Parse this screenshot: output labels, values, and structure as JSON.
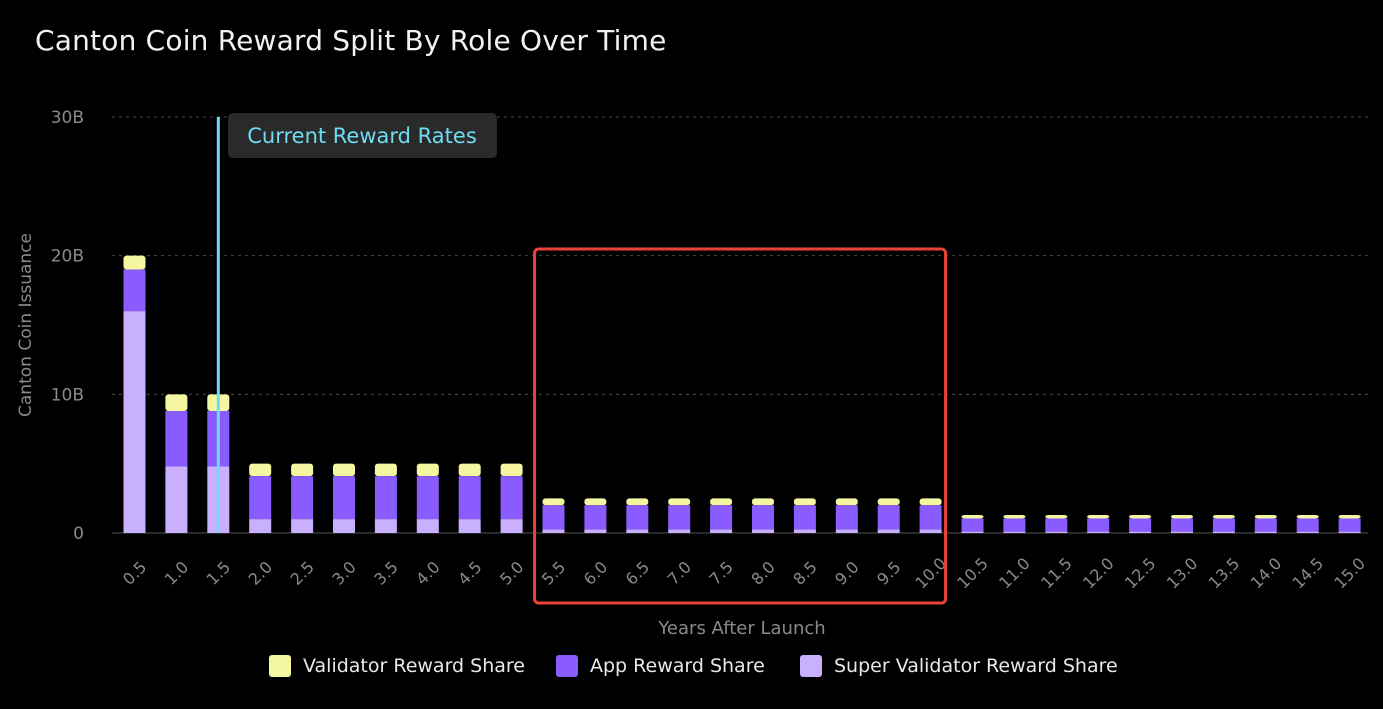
{
  "chart_data": {
    "type": "bar",
    "stacked": true,
    "title": "Canton Coin Reward Split By Role Over Time",
    "xlabel": "Years After Launch",
    "ylabel": "Canton Coin Issuance",
    "ylim": [
      0,
      30
    ],
    "yticks": [
      {
        "value": 0,
        "label": "0"
      },
      {
        "value": 10,
        "label": "10B"
      },
      {
        "value": 20,
        "label": "20B"
      },
      {
        "value": 30,
        "label": "30B"
      }
    ],
    "grid": "horizontal dashed",
    "legend_position": "bottom",
    "categories": [
      "0.5",
      "1.0",
      "1.5",
      "2.0",
      "2.5",
      "3.0",
      "3.5",
      "4.0",
      "4.5",
      "5.0",
      "5.5",
      "6.0",
      "6.5",
      "7.0",
      "7.5",
      "8.0",
      "8.5",
      "9.0",
      "9.5",
      "10.0",
      "10.5",
      "11.0",
      "11.5",
      "12.0",
      "12.5",
      "13.0",
      "13.5",
      "14.0",
      "14.5",
      "15.0"
    ],
    "series": [
      {
        "name": "Super Validator Reward Share",
        "color": "#c8b0ff",
        "values": [
          16,
          4.8,
          4.8,
          1,
          1,
          1,
          1,
          1,
          1,
          1,
          0.25,
          0.25,
          0.25,
          0.25,
          0.25,
          0.25,
          0.25,
          0.25,
          0.25,
          0.25,
          0.1,
          0.1,
          0.1,
          0.1,
          0.1,
          0.1,
          0.1,
          0.1,
          0.1,
          0.1
        ]
      },
      {
        "name": "App Reward Share",
        "color": "#8a5cff",
        "values": [
          3,
          4,
          4,
          3.1,
          3.1,
          3.1,
          3.1,
          3.1,
          3.1,
          3.1,
          1.75,
          1.75,
          1.75,
          1.75,
          1.75,
          1.75,
          1.75,
          1.75,
          1.75,
          1.75,
          0.95,
          0.95,
          0.95,
          0.95,
          0.95,
          0.95,
          0.95,
          0.95,
          0.95,
          0.95
        ]
      },
      {
        "name": "Validator Reward Share",
        "color": "#f4f7a0",
        "values": [
          1,
          1.2,
          1.2,
          0.9,
          0.9,
          0.9,
          0.9,
          0.9,
          0.9,
          0.9,
          0.5,
          0.5,
          0.5,
          0.5,
          0.5,
          0.5,
          0.5,
          0.5,
          0.5,
          0.5,
          0.25,
          0.25,
          0.25,
          0.25,
          0.25,
          0.25,
          0.25,
          0.25,
          0.25,
          0.25
        ]
      }
    ],
    "annotations": [
      {
        "type": "vertical-line",
        "at": "1.5",
        "label": "Current Reward Rates",
        "color": "#6fdcf3"
      },
      {
        "type": "highlight-box",
        "from": "5.5",
        "to": "10.0",
        "color": "#e8433a"
      }
    ]
  },
  "legend": [
    {
      "label": "Validator Reward Share",
      "color": "#f4f7a0"
    },
    {
      "label": "App Reward Share",
      "color": "#8a5cff"
    },
    {
      "label": "Super Validator Reward Share",
      "color": "#c8b0ff"
    }
  ]
}
